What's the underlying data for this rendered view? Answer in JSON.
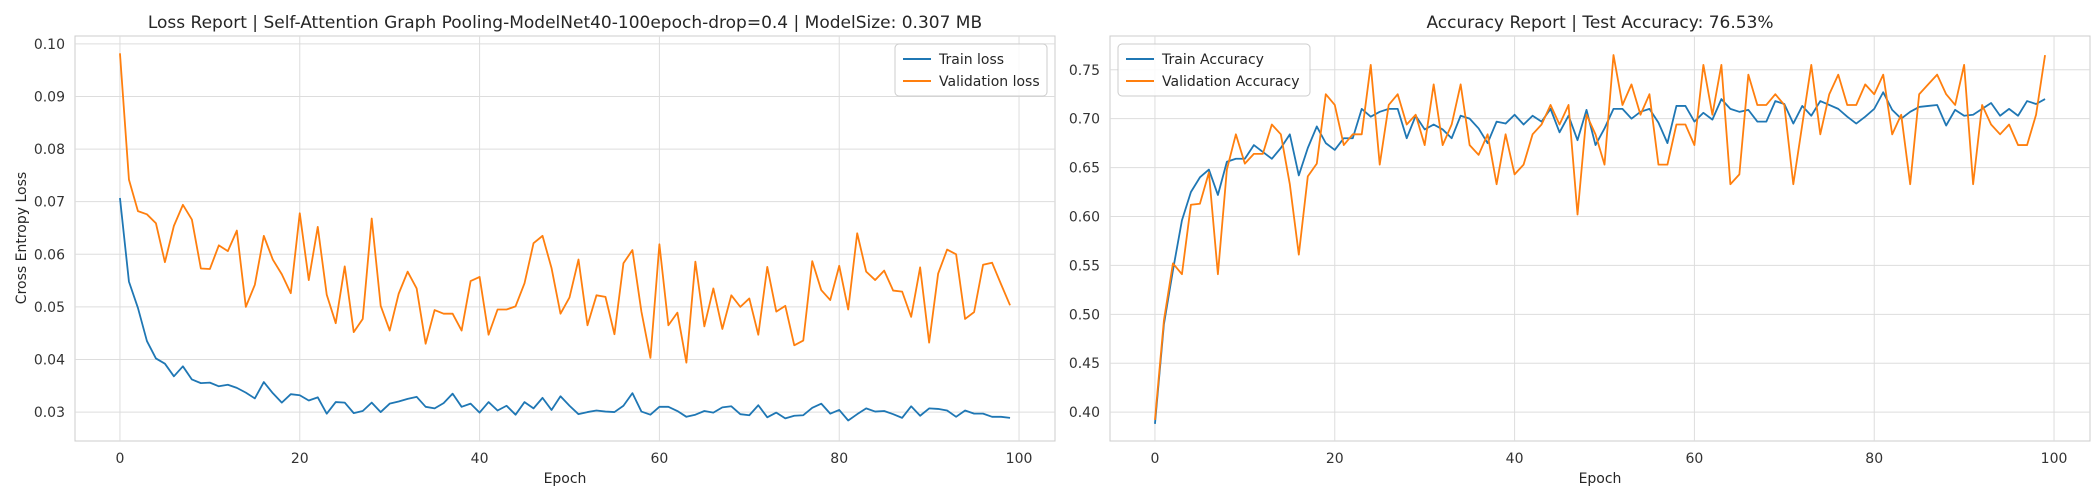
{
  "colors": {
    "train": "#1f77b4",
    "validation": "#ff7f0e",
    "grid": "#dddddd"
  },
  "chart_data": [
    {
      "type": "line",
      "title": "Loss Report | Self-Attention Graph Pooling-ModelNet40-100epoch-drop=0.4 | ModelSize: 0.307 MB",
      "xlabel": "Epoch",
      "ylabel": "Cross Entropy Loss",
      "xlim": [
        -5,
        104
      ],
      "ylim": [
        0.0245,
        0.1015
      ],
      "xticks": [
        0,
        20,
        40,
        60,
        80,
        100
      ],
      "yticks": [
        0.03,
        0.04,
        0.05,
        0.06,
        0.07,
        0.08,
        0.09,
        0.1
      ],
      "ytick_labels": [
        "0.03",
        "0.04",
        "0.05",
        "0.06",
        "0.07",
        "0.08",
        "0.09",
        "0.10"
      ],
      "grid": true,
      "legend_position": "top-right",
      "series": [
        {
          "name": "Train loss",
          "color": "#1f77b4",
          "values": [
            0.0707,
            0.0548,
            0.0498,
            0.0435,
            0.0402,
            0.0392,
            0.0368,
            0.0387,
            0.0362,
            0.0355,
            0.0356,
            0.0349,
            0.0352,
            0.0346,
            0.0337,
            0.0326,
            0.0357,
            0.0336,
            0.0318,
            0.0334,
            0.0332,
            0.0322,
            0.0328,
            0.0297,
            0.0319,
            0.0318,
            0.0298,
            0.0302,
            0.0318,
            0.03,
            0.0316,
            0.032,
            0.0325,
            0.0329,
            0.031,
            0.0307,
            0.0317,
            0.0335,
            0.031,
            0.0316,
            0.0299,
            0.0319,
            0.0303,
            0.0312,
            0.0295,
            0.0319,
            0.0307,
            0.0327,
            0.0304,
            0.033,
            0.0312,
            0.0296,
            0.03,
            0.0303,
            0.0301,
            0.03,
            0.0312,
            0.0336,
            0.0301,
            0.0295,
            0.031,
            0.031,
            0.0302,
            0.0291,
            0.0295,
            0.0302,
            0.0299,
            0.0309,
            0.0311,
            0.0296,
            0.0294,
            0.0313,
            0.029,
            0.0299,
            0.0288,
            0.0293,
            0.0294,
            0.0308,
            0.0316,
            0.0297,
            0.0304,
            0.0284,
            0.0296,
            0.0307,
            0.0301,
            0.0302,
            0.0296,
            0.0289,
            0.0311,
            0.0293,
            0.0307,
            0.0306,
            0.0303,
            0.0291,
            0.0303,
            0.0297,
            0.0297,
            0.0291,
            0.0291,
            0.0289
          ]
        },
        {
          "name": "Validation loss",
          "color": "#ff7f0e",
          "values": [
            0.0982,
            0.0742,
            0.0682,
            0.0676,
            0.0659,
            0.0585,
            0.0654,
            0.0694,
            0.0666,
            0.0573,
            0.0572,
            0.0617,
            0.0606,
            0.0645,
            0.05,
            0.0542,
            0.0635,
            0.059,
            0.0562,
            0.0526,
            0.0678,
            0.0551,
            0.0652,
            0.0523,
            0.0469,
            0.0577,
            0.0452,
            0.0477,
            0.0668,
            0.0502,
            0.0455,
            0.0525,
            0.0567,
            0.0535,
            0.043,
            0.0494,
            0.0487,
            0.0487,
            0.0455,
            0.0549,
            0.0557,
            0.0447,
            0.0495,
            0.0495,
            0.0501,
            0.0545,
            0.0621,
            0.0635,
            0.0574,
            0.0487,
            0.0518,
            0.059,
            0.0465,
            0.0522,
            0.0519,
            0.0448,
            0.0583,
            0.0608,
            0.0491,
            0.0403,
            0.0619,
            0.0465,
            0.0489,
            0.0394,
            0.0586,
            0.0463,
            0.0535,
            0.0458,
            0.0522,
            0.05,
            0.0516,
            0.0447,
            0.0576,
            0.0491,
            0.0502,
            0.0427,
            0.0436,
            0.0587,
            0.0532,
            0.0513,
            0.0578,
            0.0495,
            0.064,
            0.0567,
            0.0551,
            0.0569,
            0.0531,
            0.0529,
            0.0481,
            0.0575,
            0.0432,
            0.0563,
            0.0609,
            0.06,
            0.0477,
            0.049,
            0.058,
            0.0584,
            0.0543,
            0.0503
          ]
        }
      ]
    },
    {
      "type": "line",
      "title": "Accuracy Report | Test Accuracy: 76.53%",
      "xlabel": "Epoch",
      "ylabel": "",
      "xlim": [
        -5,
        104
      ],
      "ylim": [
        0.3705,
        0.7845
      ],
      "xticks": [
        0,
        20,
        40,
        60,
        80,
        100
      ],
      "yticks": [
        0.4,
        0.45,
        0.5,
        0.55,
        0.6,
        0.65,
        0.7,
        0.75
      ],
      "ytick_labels": [
        "0.40",
        "0.45",
        "0.50",
        "0.55",
        "0.60",
        "0.65",
        "0.70",
        "0.75"
      ],
      "grid": true,
      "legend_position": "top-left",
      "series": [
        {
          "name": "Train Accuracy",
          "color": "#1f77b4",
          "values": [
            0.388,
            0.49,
            0.545,
            0.596,
            0.625,
            0.64,
            0.648,
            0.622,
            0.656,
            0.659,
            0.659,
            0.673,
            0.666,
            0.659,
            0.67,
            0.684,
            0.642,
            0.67,
            0.692,
            0.675,
            0.668,
            0.68,
            0.68,
            0.71,
            0.702,
            0.707,
            0.71,
            0.71,
            0.68,
            0.703,
            0.689,
            0.694,
            0.689,
            0.68,
            0.703,
            0.7,
            0.69,
            0.675,
            0.697,
            0.695,
            0.704,
            0.694,
            0.703,
            0.697,
            0.71,
            0.686,
            0.703,
            0.678,
            0.709,
            0.673,
            0.69,
            0.71,
            0.71,
            0.7,
            0.707,
            0.71,
            0.696,
            0.675,
            0.713,
            0.713,
            0.697,
            0.706,
            0.699,
            0.72,
            0.71,
            0.707,
            0.709,
            0.697,
            0.697,
            0.718,
            0.715,
            0.695,
            0.713,
            0.703,
            0.718,
            0.714,
            0.71,
            0.702,
            0.695,
            0.702,
            0.71,
            0.727,
            0.709,
            0.7,
            0.707,
            0.712,
            0.713,
            0.714,
            0.693,
            0.709,
            0.703,
            0.704,
            0.71,
            0.716,
            0.703,
            0.71,
            0.703,
            0.718,
            0.715,
            0.72
          ]
        },
        {
          "name": "Validation Accuracy",
          "color": "#ff7f0e",
          "values": [
            0.392,
            0.494,
            0.552,
            0.541,
            0.612,
            0.613,
            0.645,
            0.541,
            0.648,
            0.684,
            0.654,
            0.664,
            0.664,
            0.694,
            0.684,
            0.633,
            0.561,
            0.641,
            0.654,
            0.725,
            0.714,
            0.673,
            0.684,
            0.684,
            0.755,
            0.653,
            0.714,
            0.725,
            0.694,
            0.704,
            0.673,
            0.735,
            0.673,
            0.694,
            0.735,
            0.673,
            0.663,
            0.684,
            0.633,
            0.684,
            0.643,
            0.653,
            0.684,
            0.694,
            0.714,
            0.694,
            0.714,
            0.602,
            0.704,
            0.684,
            0.653,
            0.765,
            0.714,
            0.735,
            0.704,
            0.725,
            0.653,
            0.653,
            0.694,
            0.694,
            0.673,
            0.755,
            0.704,
            0.755,
            0.633,
            0.643,
            0.745,
            0.714,
            0.714,
            0.725,
            0.714,
            0.633,
            0.694,
            0.755,
            0.684,
            0.725,
            0.745,
            0.714,
            0.714,
            0.735,
            0.725,
            0.745,
            0.684,
            0.704,
            0.633,
            0.725,
            0.735,
            0.745,
            0.725,
            0.714,
            0.755,
            0.633,
            0.714,
            0.694,
            0.684,
            0.694,
            0.673,
            0.673,
            0.704,
            0.765
          ]
        }
      ]
    }
  ]
}
